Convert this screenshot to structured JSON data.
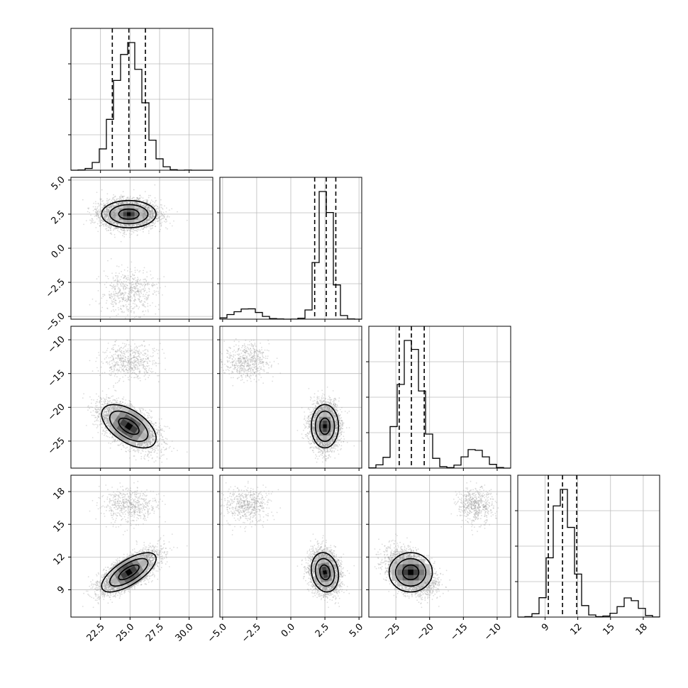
{
  "chart_data": {
    "type": "corner",
    "title": "",
    "parameters": [
      {
        "name": "",
        "range": [
          20.0,
          32.0
        ],
        "ticks": [
          22.5,
          25.0,
          27.5,
          30.0
        ],
        "tick_labels": [
          "22.5",
          "25.0",
          "27.5",
          "30.0"
        ],
        "main_mean": 24.9,
        "main_sd": 1.15,
        "secondary_mean": 24.9,
        "secondary_sd": 1.2,
        "secondary_weight": 0.12,
        "quantiles": [
          23.5,
          24.9,
          26.3
        ]
      },
      {
        "name": "",
        "range": [
          -5.2,
          5.2
        ],
        "ticks": [
          -5.0,
          -2.5,
          0.0,
          2.5,
          5.0
        ],
        "tick_labels": [
          "−5.0",
          "−2.5",
          "0.0",
          "2.5",
          "5.0"
        ],
        "main_mean": 2.5,
        "main_sd": 0.5,
        "secondary_mean": -3.2,
        "secondary_sd": 0.8,
        "secondary_weight": 0.12,
        "quantiles": [
          1.75,
          2.6,
          3.3
        ]
      },
      {
        "name": "",
        "range": [
          -29.0,
          -8.0
        ],
        "ticks": [
          -25,
          -20,
          -15,
          -10
        ],
        "tick_labels": [
          "−25",
          "−20",
          "−15",
          "−10"
        ],
        "main_mean": -22.8,
        "main_sd": 1.6,
        "secondary_mean": -13.2,
        "secondary_sd": 1.3,
        "secondary_weight": 0.12,
        "quantiles": [
          -24.5,
          -22.7,
          -20.8
        ]
      },
      {
        "name": "",
        "range": [
          6.5,
          19.5
        ],
        "ticks": [
          9,
          12,
          15,
          18
        ],
        "tick_labels": [
          "9",
          "12",
          "15",
          "18"
        ],
        "main_mean": 10.6,
        "main_sd": 0.9,
        "secondary_mean": 16.7,
        "secondary_sd": 0.8,
        "secondary_weight": 0.12,
        "quantiles": [
          9.3,
          10.6,
          11.9
        ]
      }
    ],
    "correlations_main": [
      [
        0,
        1,
        0.0
      ],
      [
        0,
        2,
        -0.55
      ],
      [
        0,
        3,
        0.7
      ],
      [
        1,
        2,
        0.0
      ],
      [
        1,
        3,
        -0.15
      ],
      [
        2,
        3,
        0.0
      ]
    ],
    "grid": true,
    "legend": "none"
  }
}
